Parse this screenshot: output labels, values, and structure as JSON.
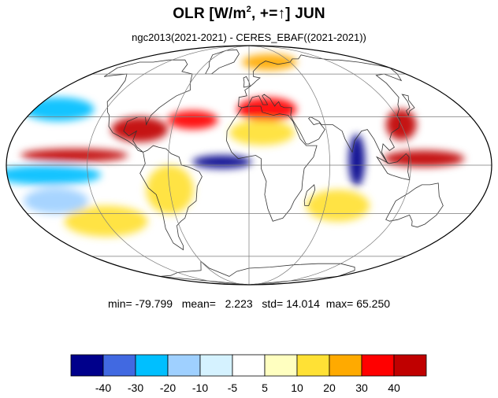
{
  "title": {
    "prefix": "OLR [W/m",
    "sup": "2",
    "suffix": ", +=↑] JUN"
  },
  "subtitle": "ngc2013(2021-2021) - CERES_EBAF((2021-2021))",
  "stats": {
    "min_label": "min=",
    "min": "-79.799",
    "mean_label": "mean=",
    "mean": "2.223",
    "std_label": "std=",
    "std": "14.014",
    "max_label": "max=",
    "max": "65.250"
  },
  "colorbar": {
    "colors": [
      "#00008b",
      "#4169e1",
      "#00bfff",
      "#9fd0ff",
      "#d5f2ff",
      "#ffffff",
      "#ffffc0",
      "#ffe135",
      "#ffaa00",
      "#ff0000",
      "#c00000"
    ],
    "labels": [
      "-40",
      "-30",
      "-20",
      "-10",
      "-5",
      "5",
      "10",
      "20",
      "30",
      "40"
    ]
  },
  "map": {
    "projection": "mollweide",
    "anomaly_regions": [
      {
        "name": "tropical-indian-ocean",
        "lon": 80,
        "lat": 3,
        "value": -55,
        "rx": 6,
        "ry": 16
      },
      {
        "name": "west-pacific-maritime",
        "lon": 130,
        "lat": 4,
        "value": 45,
        "rx": 30,
        "ry": 5
      },
      {
        "name": "east-pacific-itcz",
        "lon": -130,
        "lat": 6,
        "value": 40,
        "rx": 40,
        "ry": 4
      },
      {
        "name": "central-pacific-south",
        "lon": -150,
        "lat": -6,
        "value": -30,
        "rx": 40,
        "ry": 6
      },
      {
        "name": "tropical-atlantic",
        "lon": -20,
        "lat": 2,
        "value": -45,
        "rx": 22,
        "ry": 4
      },
      {
        "name": "caribbean-gulf",
        "lon": -85,
        "lat": 22,
        "value": 45,
        "rx": 22,
        "ry": 8
      },
      {
        "name": "north-atlantic",
        "lon": -45,
        "lat": 28,
        "value": 30,
        "rx": 20,
        "ry": 6
      },
      {
        "name": "china-sea",
        "lon": 120,
        "lat": 25,
        "value": 40,
        "rx": 12,
        "ry": 10
      },
      {
        "name": "north-africa-band",
        "lon": 15,
        "lat": 35,
        "value": 30,
        "rx": 25,
        "ry": 8
      },
      {
        "name": "sahara",
        "lon": 10,
        "lat": 20,
        "value": 15,
        "rx": 25,
        "ry": 8
      },
      {
        "name": "north-pacific",
        "lon": -160,
        "lat": 35,
        "value": -25,
        "rx": 30,
        "ry": 8
      },
      {
        "name": "southern-ocean",
        "lon": -120,
        "lat": -35,
        "value": 15,
        "rx": 35,
        "ry": 10
      },
      {
        "name": "south-america",
        "lon": -60,
        "lat": -15,
        "value": 18,
        "rx": 18,
        "ry": 15
      },
      {
        "name": "south-indian",
        "lon": 70,
        "lat": -25,
        "value": 15,
        "rx": 25,
        "ry": 10
      },
      {
        "name": "arctic",
        "lon": 30,
        "lat": 70,
        "value": 20,
        "rx": 40,
        "ry": 8
      },
      {
        "name": "south-pacific-blue",
        "lon": -150,
        "lat": -22,
        "value": -18,
        "rx": 25,
        "ry": 8
      }
    ]
  }
}
